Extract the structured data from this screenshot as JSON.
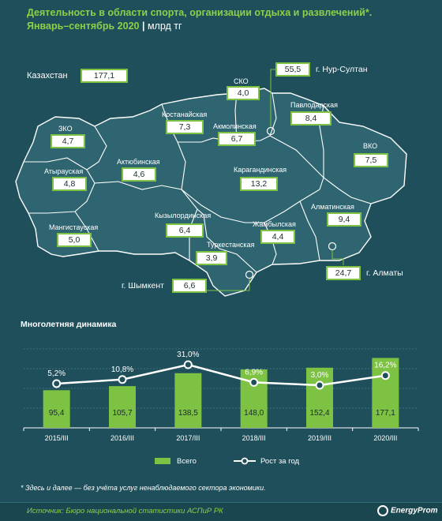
{
  "header": {
    "title_line1": "Деятельность в области спорта, организации отдыха и развлечений*.",
    "title_line2": "Январь–сентябрь 2020",
    "separator": "|",
    "unit": "млрд тг"
  },
  "map": {
    "country_label": "Казахстан",
    "country_value": "177,1",
    "regions": [
      {
        "name": "СКО",
        "value": "4,0"
      },
      {
        "name": "г. Нур-Султан",
        "value": "55,5"
      },
      {
        "name": "Павлодарская",
        "value": "8,4"
      },
      {
        "name": "Костанайская",
        "value": "7,3"
      },
      {
        "name": "Акмолинская",
        "value": "6,7"
      },
      {
        "name": "ЗКО",
        "value": "4,7"
      },
      {
        "name": "ВКО",
        "value": "7,5"
      },
      {
        "name": "Актюбинская",
        "value": "4,6"
      },
      {
        "name": "Атырауская",
        "value": "4,8"
      },
      {
        "name": "Карагандинская",
        "value": "13,2"
      },
      {
        "name": "Алматинская",
        "value": "9,4"
      },
      {
        "name": "Кызылординская",
        "value": "6,4"
      },
      {
        "name": "Жамбылская",
        "value": "4,4"
      },
      {
        "name": "Мангистауская",
        "value": "5,0"
      },
      {
        "name": "Туркестанская",
        "value": "3,9"
      },
      {
        "name": "г. Алматы",
        "value": "24,7"
      },
      {
        "name": "г. Шымкент",
        "value": "6,6"
      }
    ]
  },
  "dynamics": {
    "title": "Многолетняя динамика",
    "legend_bar": "Всего",
    "legend_line": "Рост за год"
  },
  "chart_data": {
    "type": "bar",
    "title": "Многолетняя динамика",
    "categories": [
      "2015/III",
      "2016/III",
      "2017/III",
      "2018/III",
      "2019/III",
      "2020/III"
    ],
    "series": [
      {
        "name": "Всего",
        "type": "bar",
        "values": [
          95.4,
          105.7,
          138.5,
          148.0,
          152.4,
          177.1
        ],
        "labels": [
          "95,4",
          "105,7",
          "138,5",
          "148,0",
          "152,4",
          "177,1"
        ],
        "color": "#7dc242"
      },
      {
        "name": "Рост за год",
        "type": "line",
        "values": [
          5.2,
          10.8,
          31.0,
          6.9,
          3.0,
          16.2
        ],
        "labels": [
          "5,2%",
          "10,8%",
          "31,0%",
          "6,9%",
          "3,0%",
          "16,2%"
        ],
        "color": "#ffffff"
      }
    ],
    "grid": true,
    "legend": "bottom"
  },
  "footnote": "* Здесь и далее — без учёта услуг ненаблюдаемого сектора экономики.",
  "source": {
    "label": "Источник:",
    "text": "Бюро национальной статистики АСПиР РК"
  },
  "logo": "EnergyProm",
  "colors": {
    "background": "#1f4f5a",
    "accent": "#7dc242",
    "map_fill": "#2e6570"
  }
}
